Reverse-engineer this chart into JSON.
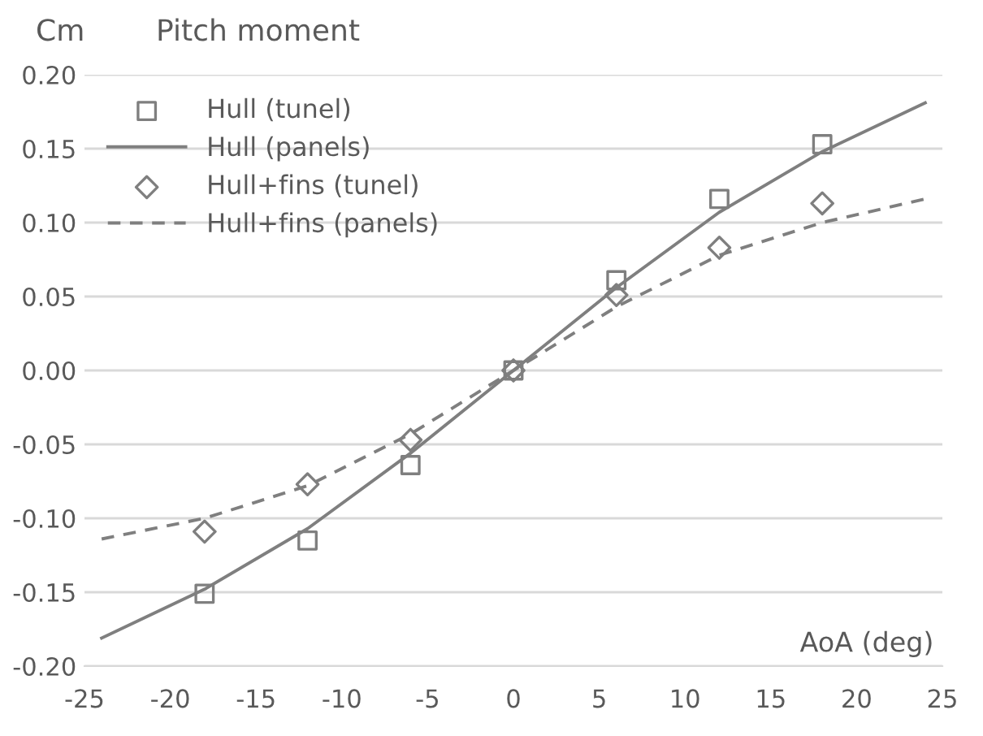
{
  "chart_data": {
    "type": "line",
    "title": "Pitch moment",
    "ylabel": "Cm",
    "xlabel": "AoA (deg)",
    "xlim": [
      -25,
      25
    ],
    "xticks": [
      -25,
      -20,
      -15,
      -10,
      -5,
      0,
      5,
      10,
      15,
      20,
      25
    ],
    "ylim": [
      -0.2,
      0.2
    ],
    "yticks": [
      {
        "value": -0.2,
        "label": "-0.20"
      },
      {
        "value": -0.15,
        "label": "-0.15"
      },
      {
        "value": -0.1,
        "label": "-0.10"
      },
      {
        "value": -0.05,
        "label": "-0.05"
      },
      {
        "value": 0,
        "label": "0.00"
      },
      {
        "value": 0.05,
        "label": "0.05"
      },
      {
        "value": 0.1,
        "label": "0.10"
      },
      {
        "value": 0.15,
        "label": "0.15"
      },
      {
        "value": 0.2,
        "label": "0.20"
      }
    ],
    "grid": "y",
    "legend": "top left",
    "series": [
      {
        "name": "Hull (tunel)",
        "type": "scatter",
        "marker": "square",
        "color": "#7f7f7f",
        "x": [
          -18,
          -12,
          -6,
          0,
          6,
          12,
          18
        ],
        "values": [
          -0.151,
          -0.115,
          -0.064,
          0,
          0.061,
          0.116,
          0.153
        ]
      },
      {
        "name": "Hull (panels)",
        "line_style": "solid",
        "color": "#7f7f7f",
        "x": [
          -24,
          -18,
          -12,
          -6,
          0,
          6,
          12,
          18,
          24
        ],
        "values": [
          -0.181,
          -0.148,
          -0.107,
          -0.056,
          0,
          0.056,
          0.107,
          0.148,
          0.181
        ]
      },
      {
        "name": "Hull+fins (tunel)",
        "type": "scatter",
        "marker": "diamond",
        "color": "#7f7f7f",
        "x": [
          -18,
          -12,
          -6,
          0,
          6,
          12,
          18
        ],
        "values": [
          -0.109,
          -0.077,
          -0.047,
          0,
          0.051,
          0.083,
          0.113
        ]
      },
      {
        "name": "Hull+fins (panels)",
        "line_style": "dashed",
        "color": "#7f7f7f",
        "x": [
          -24,
          -18,
          -12,
          -6,
          0,
          6,
          12,
          18,
          24
        ],
        "values": [
          -0.114,
          -0.1,
          -0.078,
          -0.043,
          0,
          0.043,
          0.078,
          0.1,
          0.116
        ]
      }
    ]
  }
}
